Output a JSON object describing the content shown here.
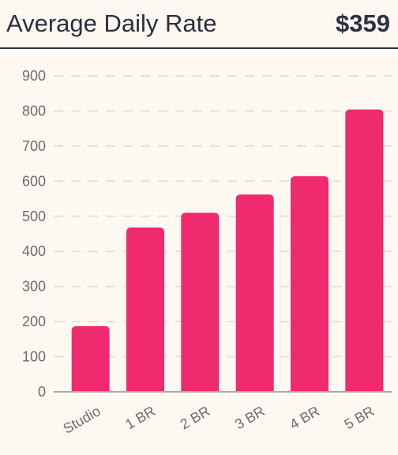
{
  "widget": {
    "title": "Average Daily Rate",
    "value": "$359"
  },
  "colors": {
    "bar": "#f02a6e",
    "grid": "#e4e0da",
    "axis": "#a9a9a9",
    "text": "#2b2f3e",
    "background": "#fdf8f1"
  },
  "chart_data": {
    "type": "bar",
    "categories": [
      "Studio",
      "1 BR",
      "2 BR",
      "3 BR",
      "4 BR",
      "5 BR"
    ],
    "values": [
      187,
      468,
      510,
      562,
      614,
      804
    ],
    "ylim": [
      0,
      900
    ],
    "yticks": [
      0,
      100,
      200,
      300,
      400,
      500,
      600,
      700,
      800,
      900
    ],
    "grid": true,
    "grid_style": "dashed"
  }
}
